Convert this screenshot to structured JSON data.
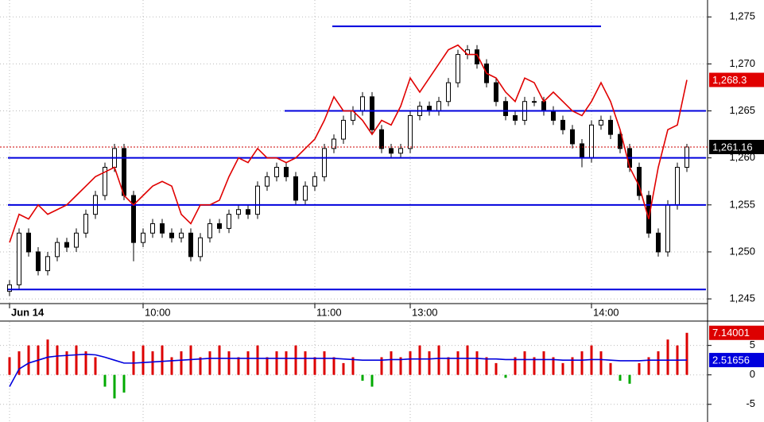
{
  "chart_data": [
    {
      "type": "candlestick",
      "categories": [
        "Jun 14",
        null,
        null,
        null,
        null,
        null,
        null,
        null,
        null,
        null,
        null,
        null,
        null,
        null,
        "10:00",
        null,
        null,
        null,
        null,
        null,
        null,
        null,
        null,
        null,
        null,
        null,
        null,
        null,
        null,
        null,
        null,
        null,
        "11:00",
        null,
        null,
        null,
        null,
        null,
        null,
        null,
        null,
        null,
        "13:00",
        null,
        null,
        null,
        null,
        null,
        null,
        null,
        null,
        null,
        null,
        null,
        null,
        null,
        null,
        null,
        null,
        null,
        null,
        "14:00",
        null,
        null,
        null,
        null,
        null,
        null,
        null,
        null,
        null,
        null
      ],
      "candles": {
        "color": "#000000",
        "value_label": "1,261.16",
        "open": [
          1245.8,
          1246.5,
          1252,
          1250,
          1248,
          1249.5,
          1251,
          1250.5,
          1252,
          1254,
          1256,
          1259,
          1261,
          1256,
          1251,
          1252,
          1253,
          1252,
          1251.5,
          1252,
          1249.5,
          1251.5,
          1253,
          1252.5,
          1254,
          1254.5,
          1254,
          1257,
          1258,
          1259,
          1258,
          1255.5,
          1257,
          1258,
          1261,
          1262,
          1264,
          1265,
          1266.5,
          1263,
          1261,
          1260.5,
          1261,
          1264.5,
          1265.5,
          1265,
          1266,
          1268,
          1271,
          1271.5,
          1270,
          1268,
          1266,
          1264.5,
          1264,
          1266,
          1266,
          1265,
          1264,
          1263,
          1261.5,
          1260,
          1263.5,
          1264,
          1262.5,
          1261,
          1259,
          1256,
          1252,
          1250,
          1255,
          1259
        ],
        "high": [
          1247,
          1252.5,
          1252.5,
          1250.5,
          1250,
          1251.5,
          1251.5,
          1252.5,
          1254.5,
          1256.5,
          1259.5,
          1261.5,
          1261.5,
          1256.5,
          1252.5,
          1253.5,
          1253.5,
          1252.5,
          1252.5,
          1252.5,
          1252,
          1253.5,
          1253.5,
          1254.5,
          1255,
          1255,
          1257.5,
          1258.5,
          1259.5,
          1259.5,
          1258.5,
          1257.5,
          1258.5,
          1261.5,
          1262.5,
          1264.5,
          1265.5,
          1267,
          1267,
          1263.5,
          1261.5,
          1261.5,
          1265,
          1266,
          1266,
          1266.5,
          1268.5,
          1271.5,
          1272,
          1272,
          1270.5,
          1268.5,
          1266.5,
          1265,
          1266.5,
          1266.5,
          1266.5,
          1265.5,
          1264.5,
          1263.5,
          1262,
          1264,
          1264.5,
          1264.5,
          1263,
          1261.5,
          1259.5,
          1256.5,
          1252.5,
          1255.5,
          1259.5,
          1261.5
        ],
        "low": [
          1245.3,
          1246,
          1249.5,
          1247.5,
          1247.5,
          1249,
          1250,
          1250,
          1251.5,
          1253.5,
          1255.5,
          1258.5,
          1255.5,
          1249,
          1250.5,
          1251.5,
          1251.5,
          1251,
          1251,
          1249,
          1249,
          1251,
          1252,
          1252,
          1253.5,
          1253.5,
          1253.5,
          1256.5,
          1257.5,
          1257.5,
          1255,
          1255,
          1256.5,
          1257.5,
          1260.5,
          1261.5,
          1263.5,
          1264.5,
          1262.5,
          1260.5,
          1260,
          1260,
          1260.5,
          1264,
          1264.5,
          1264.5,
          1265.5,
          1267.5,
          1270.5,
          1269.5,
          1267.5,
          1265.5,
          1264,
          1263.5,
          1263.5,
          1265.5,
          1264.5,
          1263.5,
          1262.5,
          1261,
          1259,
          1259.5,
          1263,
          1262,
          1260.5,
          1258.5,
          1255.5,
          1251.5,
          1249.5,
          1249.5,
          1254.5,
          1258.5
        ],
        "close": [
          1246.5,
          1252,
          1250,
          1248,
          1249.5,
          1251,
          1250.5,
          1252,
          1254,
          1256,
          1259,
          1261,
          1256,
          1251,
          1252,
          1253,
          1252,
          1251.5,
          1252,
          1249.5,
          1251.5,
          1253,
          1252.5,
          1254,
          1254.5,
          1254,
          1257,
          1258,
          1259,
          1258,
          1255.5,
          1257,
          1258,
          1261,
          1262,
          1264,
          1265,
          1266.5,
          1263,
          1261,
          1260.5,
          1261,
          1264.5,
          1265.5,
          1265,
          1266,
          1268,
          1271,
          1271.5,
          1270,
          1268,
          1266,
          1264.5,
          1264,
          1266,
          1266,
          1265,
          1264,
          1263,
          1261.5,
          1260,
          1263.5,
          1264,
          1262.5,
          1261,
          1259,
          1256,
          1252,
          1250,
          1255,
          1259,
          1261.16
        ]
      },
      "lines": [
        {
          "color": "#e00000",
          "value_label": "1,268.3",
          "values": [
            1251,
            1254,
            1253.5,
            1255,
            1254,
            1254.5,
            1255,
            1256,
            1257,
            1258,
            1258.5,
            1259,
            1256,
            1255,
            1256,
            1257,
            1257.5,
            1257,
            1254,
            1253,
            1255,
            1255,
            1255.5,
            1258,
            1260,
            1259.5,
            1261,
            1260,
            1260,
            1259.5,
            1260,
            1261,
            1262,
            1264,
            1266.5,
            1265,
            1265,
            1264,
            1262.5,
            1264,
            1263.5,
            1265.5,
            1268.5,
            1267,
            1268.5,
            1270,
            1271.5,
            1272,
            1271,
            1271,
            1269,
            1268.5,
            1267,
            1266,
            1268.5,
            1268,
            1266,
            1267,
            1266,
            1265,
            1264.5,
            1266,
            1268,
            1266,
            1263,
            1259,
            1257,
            1253.5,
            1259,
            1263,
            1263.5,
            1268.3
          ]
        }
      ],
      "levels": [
        {
          "value": 1274,
          "start": 34,
          "end": 62
        },
        {
          "value": 1265,
          "start": 29,
          "end": 73
        },
        {
          "value": 1260,
          "start": 0,
          "end": 73
        },
        {
          "value": 1255,
          "start": 0,
          "end": 73
        },
        {
          "value": 1246,
          "start": 0,
          "end": 73
        }
      ],
      "level_color": "#0000dd",
      "ylim": [
        1244.5,
        1276.8
      ],
      "yticks": [
        {
          "value": 1245,
          "label": "1,245"
        },
        {
          "value": 1250,
          "label": "1,250"
        },
        {
          "value": 1255,
          "label": "1,255"
        },
        {
          "value": 1260,
          "label": "1,260"
        },
        {
          "value": 1265,
          "label": "1,265"
        },
        {
          "value": 1270,
          "label": "1,270"
        },
        {
          "value": 1275,
          "label": "1,275"
        }
      ],
      "grid": true
    },
    {
      "type": "bar",
      "values": [
        3,
        4,
        5,
        5,
        6,
        5,
        4,
        5,
        4,
        3,
        -2,
        -4,
        -3,
        4,
        5,
        4,
        5,
        3,
        4,
        5,
        3,
        4,
        5,
        4,
        3,
        4,
        5,
        3,
        4,
        4,
        5,
        4,
        3,
        4,
        3,
        2,
        3,
        -1,
        -2,
        3,
        4,
        3,
        4,
        5,
        4,
        5,
        3,
        4,
        5,
        4,
        3,
        2,
        -0.5,
        3,
        4,
        3,
        4,
        3,
        2,
        3,
        4,
        5,
        4,
        2,
        -1,
        -1.5,
        2,
        3,
        4,
        6,
        5,
        7.14001
      ],
      "value_label": "7.14001",
      "color": "#dd0000",
      "negative_color": "#00aa00",
      "lines": [
        {
          "color": "#0000dd",
          "value_label": "2.51656",
          "values": [
            -2,
            1,
            2,
            2.5,
            3,
            3.2,
            3.3,
            3.4,
            3.5,
            3.4,
            3,
            2.5,
            2,
            2,
            2.1,
            2.2,
            2.3,
            2.4,
            2.5,
            2.6,
            2.7,
            2.8,
            2.8,
            2.8,
            2.8,
            2.8,
            2.8,
            2.8,
            2.8,
            2.8,
            2.8,
            2.8,
            2.8,
            2.8,
            2.8,
            2.7,
            2.6,
            2.5,
            2.5,
            2.5,
            2.6,
            2.6,
            2.7,
            2.7,
            2.7,
            2.8,
            2.8,
            2.8,
            2.8,
            2.8,
            2.7,
            2.7,
            2.6,
            2.6,
            2.6,
            2.6,
            2.6,
            2.6,
            2.5,
            2.5,
            2.5,
            2.6,
            2.6,
            2.5,
            2.4,
            2.4,
            2.4,
            2.5,
            2.5,
            2.5,
            2.5,
            2.51656
          ]
        }
      ],
      "ylim": [
        -8,
        9
      ],
      "yticks": [
        5,
        0,
        -5
      ],
      "grid": true
    }
  ]
}
